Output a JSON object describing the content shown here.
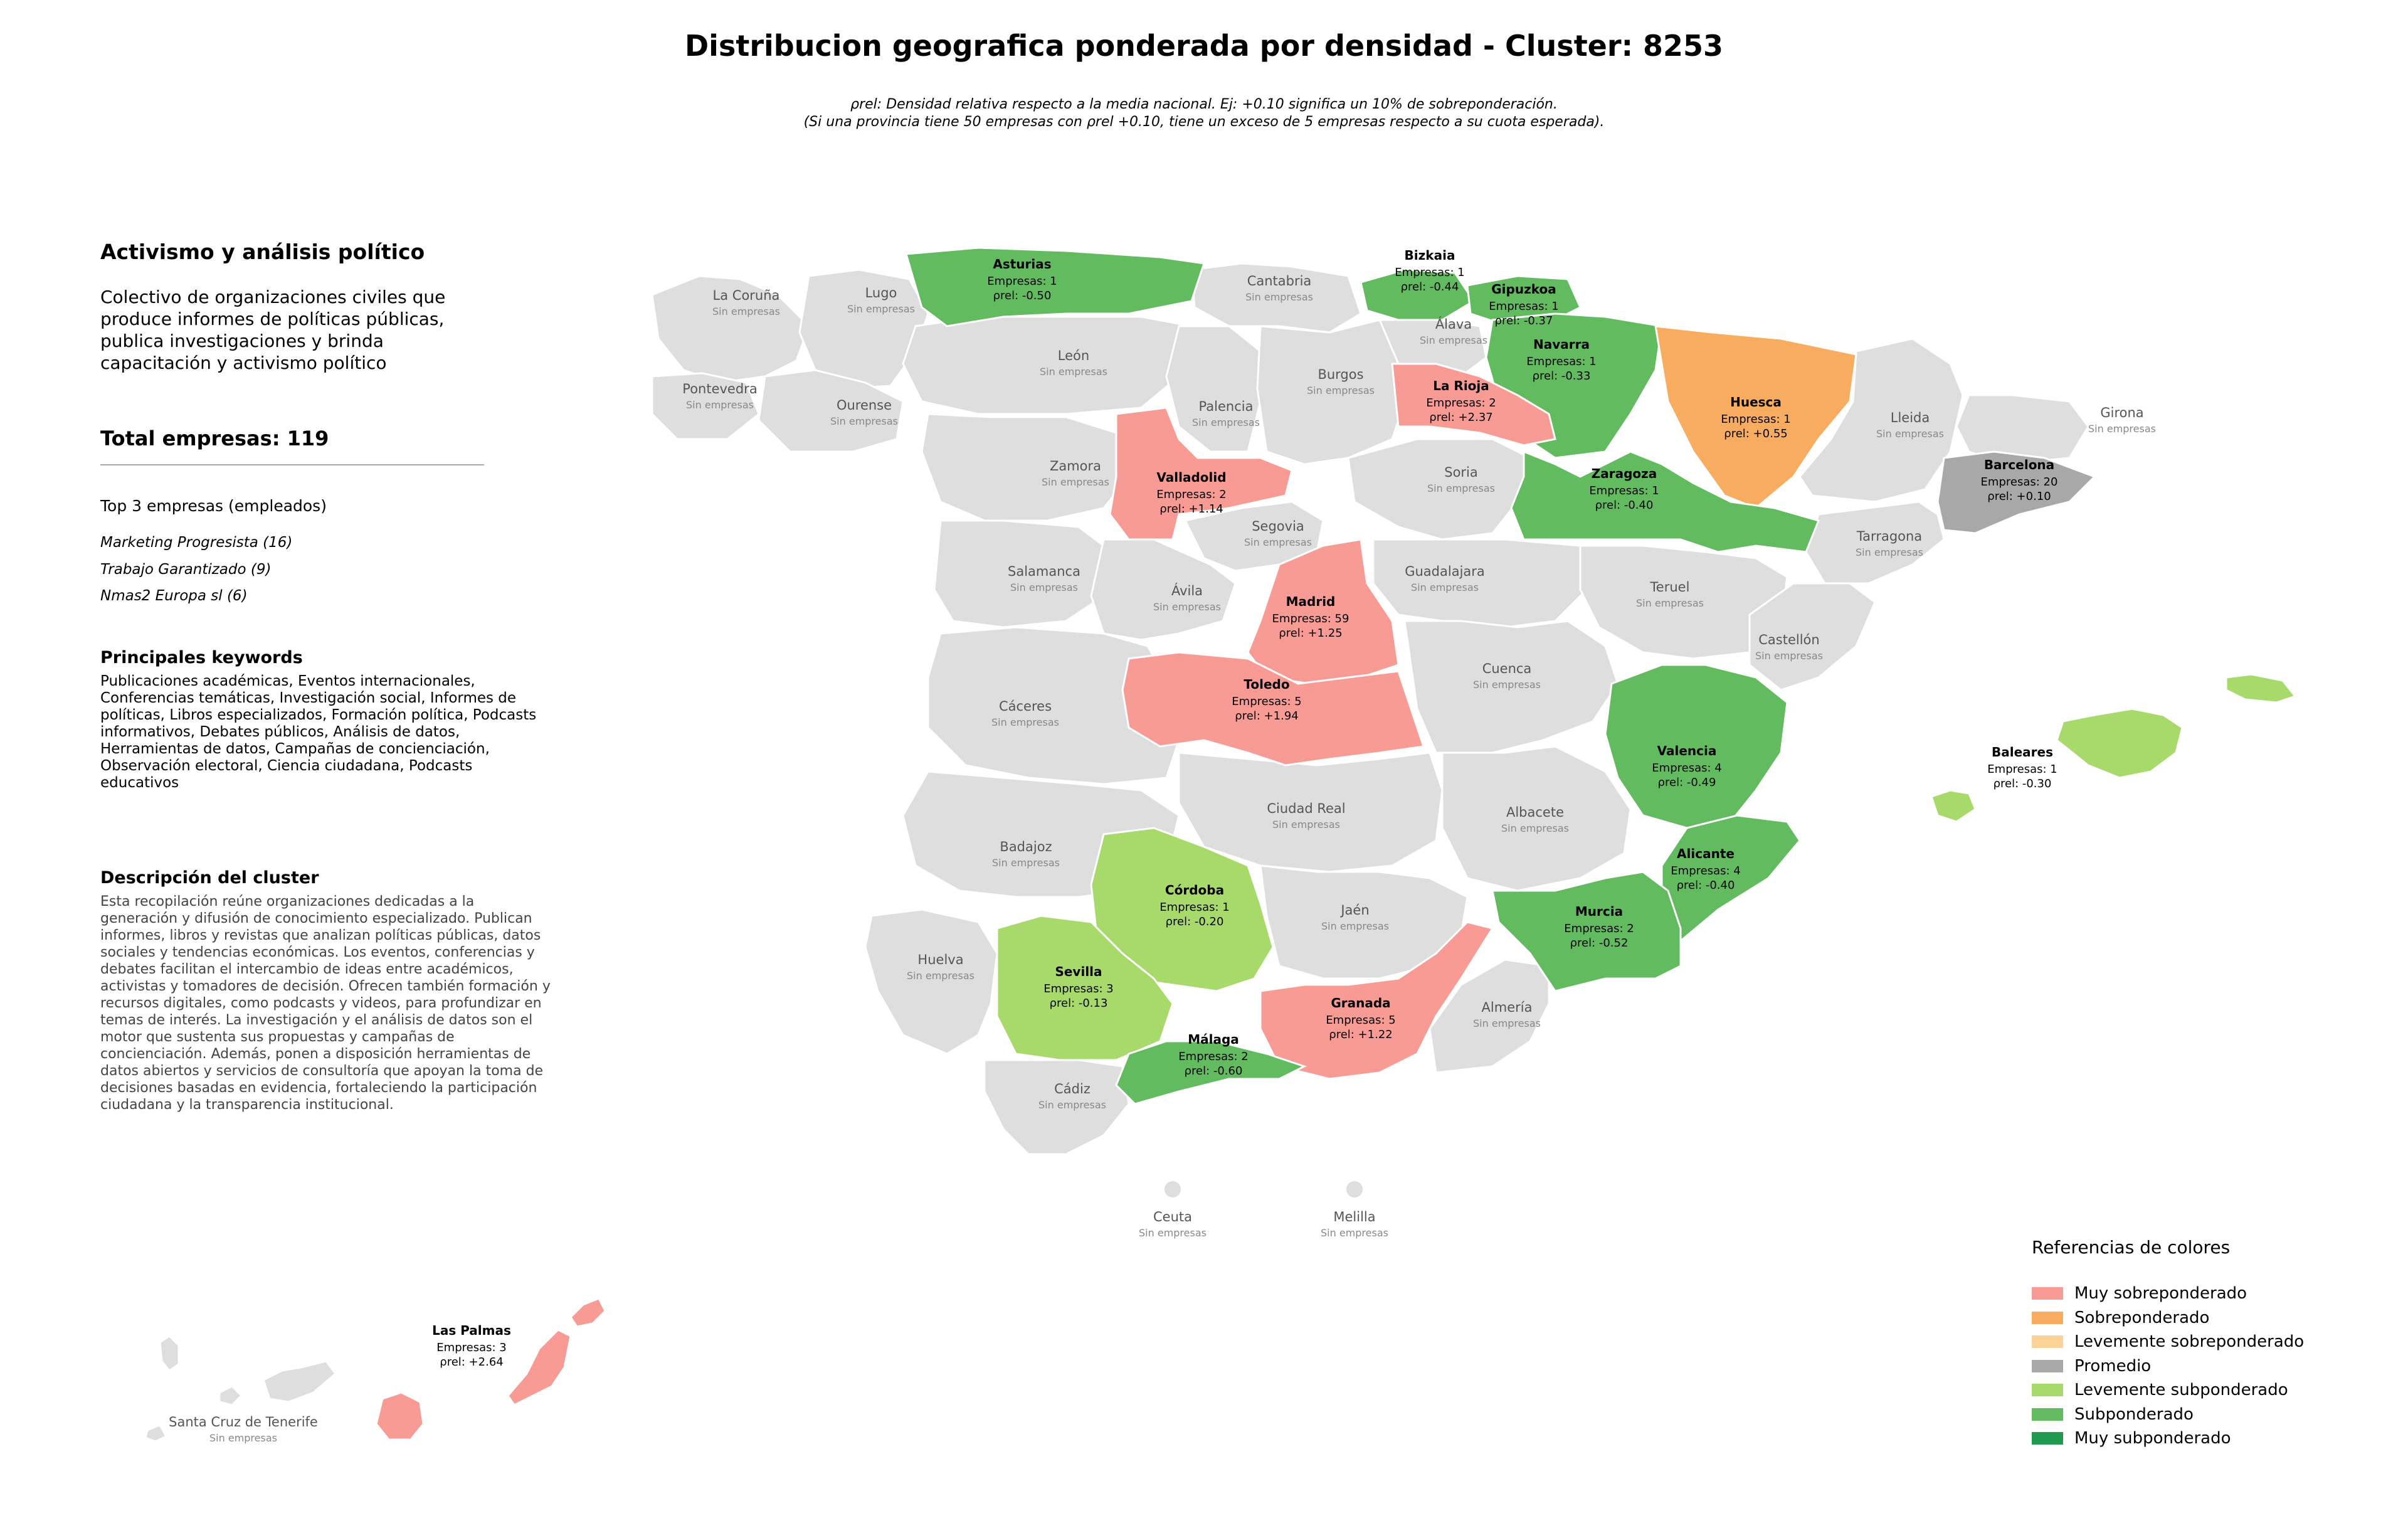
{
  "title": "Distribucion geografica ponderada por densidad - Cluster: 8253",
  "subtitle": {
    "line1": "ρrel: Densidad relativa respecto a la media nacional. Ej: +0.10 significa un 10% de sobreponderación.",
    "line2": "(Si una provincia tiene 50 empresas con ρrel +0.10, tiene un exceso de 5 empresas respecto a su cuota esperada)."
  },
  "cluster": {
    "name": "Activismo y análisis político",
    "description": "Colectivo de organizaciones civiles que produce informes de políticas públicas, publica investigaciones y brinda capacitación y activismo político",
    "total_label": "Total empresas: 119",
    "top3_heading": "Top 3 empresas (empleados)",
    "top3": [
      "Marketing Progresista (16)",
      "Trabajo Garantizado (9)",
      "Nmas2 Europa sl (6)"
    ],
    "keywords_heading": "Principales keywords",
    "keywords": "Publicaciones académicas, Eventos internacionales, Conferencias temáticas, Investigación social, Informes de políticas, Libros especializados, Formación política, Podcasts informativos, Debates públicos, Análisis de datos, Herramientas de datos, Campañas de concienciación, Observación electoral, Ciencia ciudadana, Podcasts educativos",
    "desc_heading": "Descripción del cluster",
    "desc_text": "Esta recopilación reúne organizaciones dedicadas a la generación y difusión de conocimiento especializado. Publican informes, libros y revistas que analizan políticas públicas, datos sociales y tendencias económicas. Los eventos, conferencias y debates facilitan el intercambio de ideas entre académicos, activistas y tomadores de decisión. Ofrecen también formación y recursos digitales, como podcasts y videos, para profundizar en temas de interés. La investigación y el análisis de datos son el motor que sustenta sus propuestas y campañas de concienciación. Además, ponen a disposición herramientas de datos abiertos y servicios de consultoría que apoyan la toma de decisiones basadas en evidencia, fortaleciendo la participación ciudadana y la transparencia institucional."
  },
  "colors": {
    "muy_sobre": "#f89b95",
    "sobre": "#f7ac60",
    "lev_sobre": "#fdd398",
    "promedio": "#a8a8a8",
    "lev_sub": "#a8d96b",
    "sub": "#63bb60",
    "muy_sub": "#1f9a4e",
    "empty": "#dedede",
    "border": "#ffffff"
  },
  "provinces_with_data": [
    {
      "name": "Asturias",
      "empresas": "Empresas: 1",
      "rho": "ρrel: -0.50",
      "category": "sub"
    },
    {
      "name": "Bizkaia",
      "empresas": "Empresas: 1",
      "rho": "ρrel: -0.44",
      "category": "sub"
    },
    {
      "name": "Gipuzkoa",
      "empresas": "Empresas: 1",
      "rho": "ρrel: -0.37",
      "category": "sub"
    },
    {
      "name": "Navarra",
      "empresas": "Empresas: 1",
      "rho": "ρrel: -0.33",
      "category": "sub"
    },
    {
      "name": "La Rioja",
      "empresas": "Empresas: 2",
      "rho": "ρrel: +2.37",
      "category": "muy_sobre"
    },
    {
      "name": "Huesca",
      "empresas": "Empresas: 1",
      "rho": "ρrel: +0.55",
      "category": "sobre"
    },
    {
      "name": "Barcelona",
      "empresas": "Empresas: 20",
      "rho": "ρrel: +0.10",
      "category": "promedio"
    },
    {
      "name": "Zaragoza",
      "empresas": "Empresas: 1",
      "rho": "ρrel: -0.40",
      "category": "sub"
    },
    {
      "name": "Valladolid",
      "empresas": "Empresas: 2",
      "rho": "ρrel: +1.14",
      "category": "muy_sobre"
    },
    {
      "name": "Madrid",
      "empresas": "Empresas: 59",
      "rho": "ρrel: +1.25",
      "category": "muy_sobre"
    },
    {
      "name": "Toledo",
      "empresas": "Empresas: 5",
      "rho": "ρrel: +1.94",
      "category": "muy_sobre"
    },
    {
      "name": "Valencia",
      "empresas": "Empresas: 4",
      "rho": "ρrel: -0.49",
      "category": "sub"
    },
    {
      "name": "Baleares",
      "empresas": "Empresas: 1",
      "rho": "ρrel: -0.30",
      "category": "lev_sub"
    },
    {
      "name": "Alicante",
      "empresas": "Empresas: 4",
      "rho": "ρrel: -0.40",
      "category": "sub"
    },
    {
      "name": "Murcia",
      "empresas": "Empresas: 2",
      "rho": "ρrel: -0.52",
      "category": "sub"
    },
    {
      "name": "Córdoba",
      "empresas": "Empresas: 1",
      "rho": "ρrel: -0.20",
      "category": "lev_sub"
    },
    {
      "name": "Sevilla",
      "empresas": "Empresas: 3",
      "rho": "ρrel: -0.13",
      "category": "lev_sub"
    },
    {
      "name": "Granada",
      "empresas": "Empresas: 5",
      "rho": "ρrel: +1.22",
      "category": "muy_sobre"
    },
    {
      "name": "Málaga",
      "empresas": "Empresas: 2",
      "rho": "ρrel: -0.60",
      "category": "sub"
    },
    {
      "name": "Las Palmas",
      "empresas": "Empresas: 3",
      "rho": "ρrel: +2.64",
      "category": "muy_sobre"
    }
  ],
  "empty_label": "Sin empresas",
  "provinces_without_data": [
    "La Coruña",
    "Lugo",
    "Cantabria",
    "Álava",
    "Pontevedra",
    "Ourense",
    "León",
    "Palencia",
    "Burgos",
    "Lleida",
    "Girona",
    "Zamora",
    "Soria",
    "Segovia",
    "Tarragona",
    "Salamanca",
    "Ávila",
    "Guadalajara",
    "Teruel",
    "Castellón",
    "Cuenca",
    "Cáceres",
    "Ciudad Real",
    "Albacete",
    "Badajoz",
    "Jaén",
    "Huelva",
    "Almería",
    "Cádiz",
    "Ceuta",
    "Melilla",
    "Santa Cruz de Tenerife"
  ],
  "legend": {
    "title": "Referencias de colores",
    "items": [
      {
        "label": "Muy sobreponderado",
        "color": "#f89b95"
      },
      {
        "label": "Sobreponderado",
        "color": "#f7ac60"
      },
      {
        "label": "Levemente sobreponderado",
        "color": "#fdd398"
      },
      {
        "label": "Promedio",
        "color": "#a8a8a8"
      },
      {
        "label": "Levemente subponderado",
        "color": "#a8d96b"
      },
      {
        "label": "Subponderado",
        "color": "#63bb60"
      },
      {
        "label": "Muy subponderado",
        "color": "#1f9a4e"
      }
    ]
  }
}
